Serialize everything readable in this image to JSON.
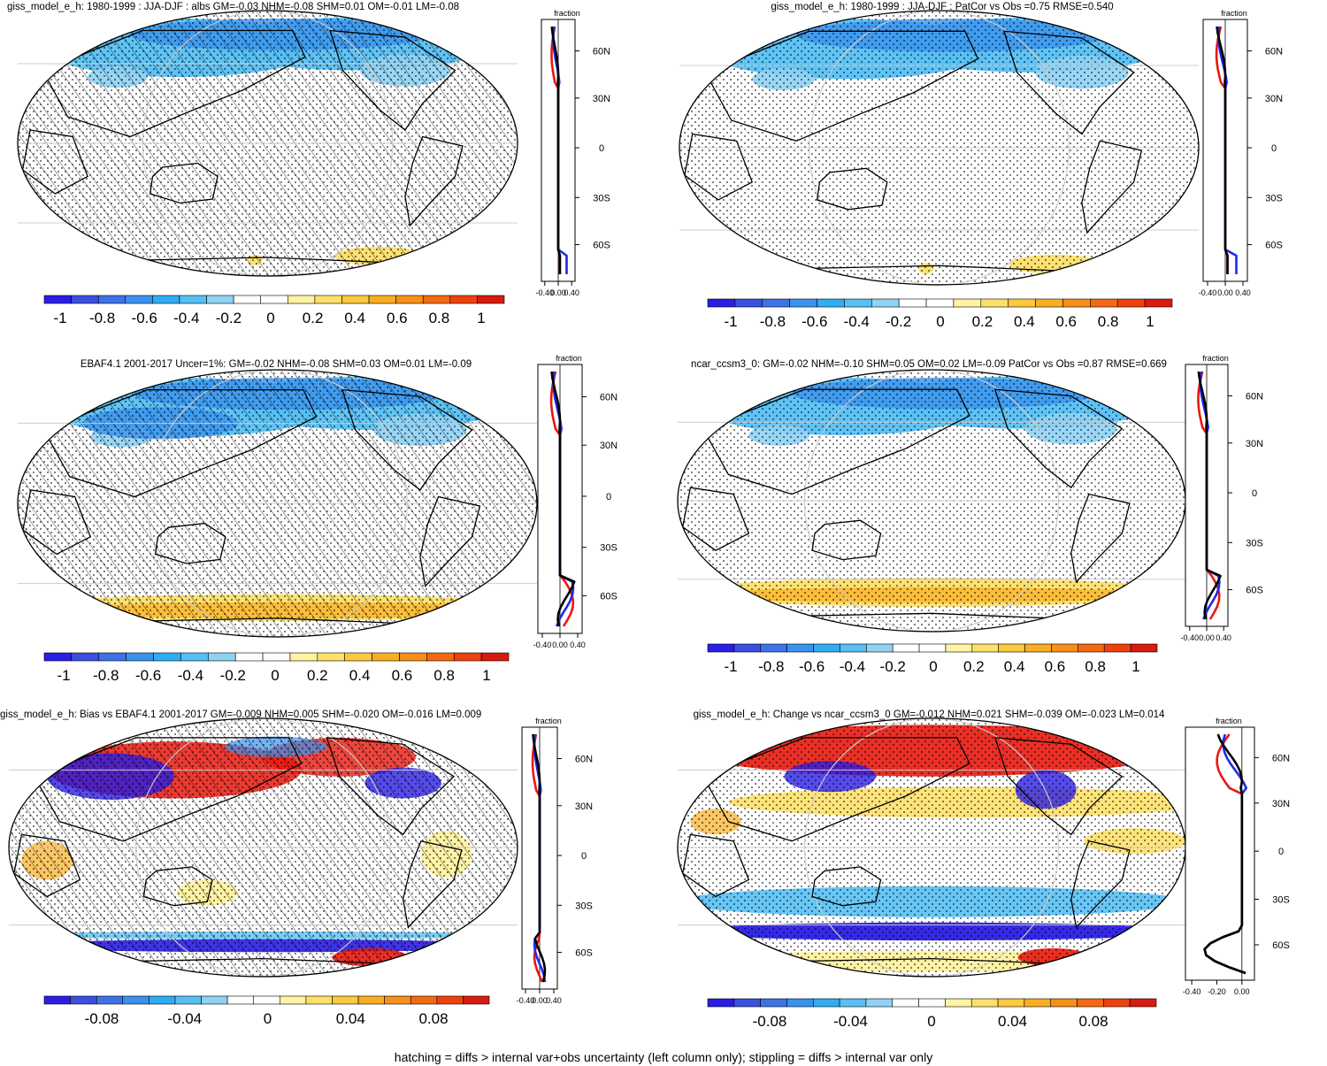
{
  "colors": {
    "main_scale": [
      "#2a1de6",
      "#3b4fe0",
      "#3d73e6",
      "#3a92ee",
      "#2fadf2",
      "#56c0f4",
      "#8fd2f4",
      "#ffffff",
      "#ffffff",
      "#fff2a0",
      "#fde06b",
      "#fbc83e",
      "#f9ae22",
      "#f78f18",
      "#f36912",
      "#ee410e",
      "#d81b0e"
    ],
    "diff_scale": [
      "#2a1de6",
      "#3b4fe0",
      "#3d73e6",
      "#3a92ee",
      "#2fadf2",
      "#56c0f4",
      "#8fd2f4",
      "#ffffff",
      "#ffffff",
      "#fff2a0",
      "#fde06b",
      "#fbc83e",
      "#f9ae22",
      "#f78f18",
      "#f36912",
      "#ee410e",
      "#d81b0e"
    ],
    "profile_lines": [
      "#e8180e",
      "#1a2bea",
      "#000000"
    ]
  },
  "panels": [
    {
      "id": "a",
      "title": "giss_model_e_h: 1980-1999 : JJA-DJF : albs GM=-0.03 NHM=-0.08 SHM=0.01 OM=-0.01 LM=-0.08",
      "hatching": true,
      "colorbar_labels": [
        "-1",
        "-0.8",
        "-0.6",
        "-0.4",
        "-0.2",
        "0",
        "0.2",
        "0.4",
        "0.6",
        "0.8",
        "1"
      ],
      "profile_xlabels": [
        "-0.40",
        "0.00",
        "0.40"
      ],
      "profile_ylabels": [
        "60N",
        "30N",
        "0",
        "30S",
        "60S"
      ],
      "profile_title": "fraction",
      "map_pattern": "nh_negative"
    },
    {
      "id": "b",
      "title": "giss_model_e_h: 1980-1999 : JJA-DJF : PatCor vs Obs =0.75 RMSE=0.540",
      "hatching": false,
      "colorbar_labels": [
        "-1",
        "-0.8",
        "-0.6",
        "-0.4",
        "-0.2",
        "0",
        "0.2",
        "0.4",
        "0.6",
        "0.8",
        "1"
      ],
      "profile_xlabels": [
        "-0.40",
        "0.00",
        "0.40"
      ],
      "profile_ylabels": [
        "60N",
        "30N",
        "0",
        "30S",
        "60S"
      ],
      "profile_title": "fraction",
      "map_pattern": "nh_negative"
    },
    {
      "id": "c",
      "title": "EBAF4.1 2001-2017 Uncer=1%: GM=-0.02 NHM=-0.08 SHM=0.03 OM=0.01 LM=-0.09",
      "hatching": true,
      "colorbar_labels": [
        "-1",
        "-0.8",
        "-0.6",
        "-0.4",
        "-0.2",
        "0",
        "0.2",
        "0.4",
        "0.6",
        "0.8",
        "1"
      ],
      "profile_xlabels": [
        "-0.40",
        "0.00",
        "0.40"
      ],
      "profile_ylabels": [
        "60N",
        "30N",
        "0",
        "30S",
        "60S"
      ],
      "profile_title": "fraction",
      "map_pattern": "obs"
    },
    {
      "id": "d",
      "title": "ncar_ccsm3_0: GM=-0.02 NHM=-0.10 SHM=0.05 OM=0.02 LM=-0.09 PatCor vs Obs =0.87 RMSE=0.669",
      "hatching": false,
      "colorbar_labels": [
        "-1",
        "-0.8",
        "-0.6",
        "-0.4",
        "-0.2",
        "0",
        "0.2",
        "0.4",
        "0.6",
        "0.8",
        "1"
      ],
      "profile_xlabels": [
        "-0.40",
        "0.00",
        "0.40"
      ],
      "profile_ylabels": [
        "60N",
        "30N",
        "0",
        "30S",
        "60S"
      ],
      "profile_title": "fraction",
      "map_pattern": "ncar"
    },
    {
      "id": "e",
      "title": "giss_model_e_h: Bias vs EBAF4.1 2001-2017 GM=-0.009 NHM=0.005 SHM=-0.020 OM=-0.016 LM=0.009",
      "hatching": true,
      "colorbar_labels": [
        "-0.08",
        "-0.04",
        "0",
        "0.04",
        "0.08"
      ],
      "profile_xlabels": [
        "-0.40",
        "0.00",
        "0.40"
      ],
      "profile_ylabels": [
        "60N",
        "30N",
        "0",
        "30S",
        "60S"
      ],
      "profile_title": "fraction",
      "map_pattern": "bias"
    },
    {
      "id": "f",
      "title": "giss_model_e_h: Change vs ncar_ccsm3_0 GM=-0.012 NHM=0.021 SHM=-0.039 OM=-0.023 LM=0.014",
      "hatching": false,
      "colorbar_labels": [
        "-0.08",
        "-0.04",
        "0",
        "0.04",
        "0.08"
      ],
      "profile_xlabels": [
        "-0.40",
        "-0.20",
        "0.00"
      ],
      "profile_ylabels": [
        "60N",
        "30N",
        "0",
        "30S",
        "60S"
      ],
      "profile_title": "fraction",
      "map_pattern": "change"
    }
  ],
  "footnote": "hatching = diffs > internal var+obs uncertainty (left column only); stippling = diffs > internal var only"
}
